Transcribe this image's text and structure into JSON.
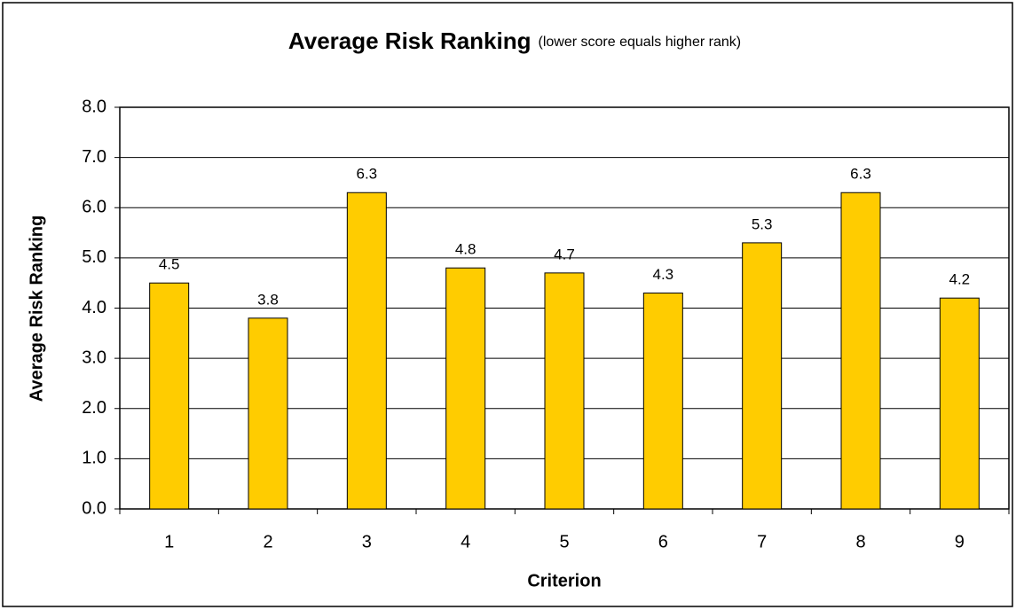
{
  "chart_data": {
    "type": "bar",
    "title": "Average Risk Ranking",
    "subtitle": "(lower score equals higher rank)",
    "x_label": "Criterion",
    "y_label": "Average Risk Ranking",
    "categories": [
      "1",
      "2",
      "3",
      "4",
      "5",
      "6",
      "7",
      "8",
      "9"
    ],
    "values": [
      4.5,
      3.8,
      6.3,
      4.8,
      4.7,
      4.3,
      5.3,
      6.3,
      4.2
    ],
    "color": "#ffcc00",
    "ylim": [
      0,
      8
    ],
    "yticks": [
      {
        "value": 0,
        "label": "0.0"
      },
      {
        "value": 1,
        "label": "1.0"
      },
      {
        "value": 2,
        "label": "2.0"
      },
      {
        "value": 3,
        "label": "3.0"
      },
      {
        "value": 4,
        "label": "4.0"
      },
      {
        "value": 5,
        "label": "5.0"
      },
      {
        "value": 6,
        "label": "6.0"
      },
      {
        "value": 7,
        "label": "7.0"
      },
      {
        "value": 8,
        "label": "8.0"
      }
    ],
    "grid": true
  }
}
